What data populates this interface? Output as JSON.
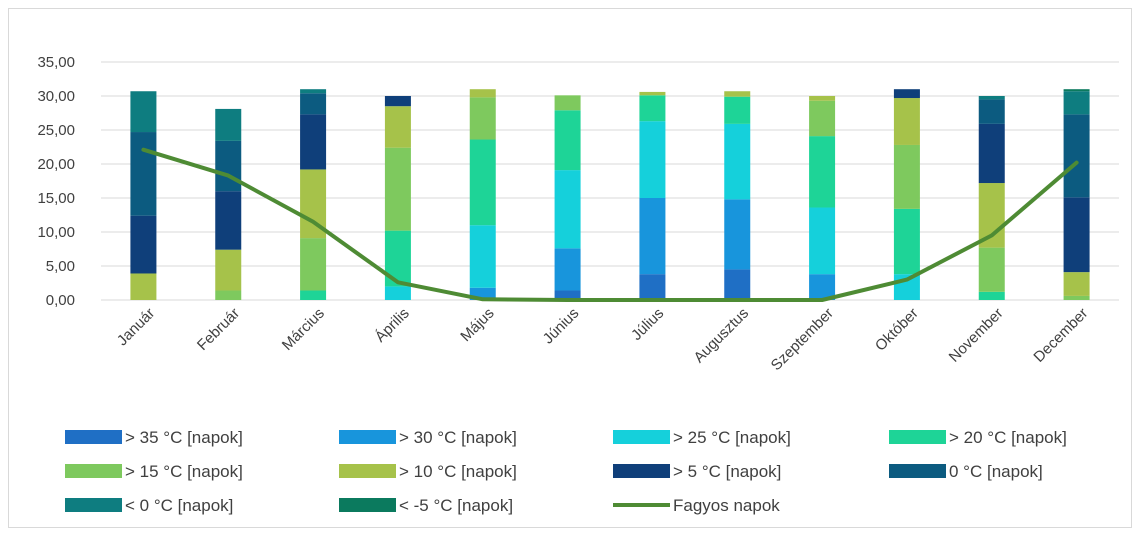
{
  "chart_data": {
    "type": "bar",
    "stacked": true,
    "title": "",
    "xlabel": "",
    "ylabel": "",
    "ylim": [
      0,
      35
    ],
    "y_ticks": [
      "0,00",
      "5,00",
      "10,00",
      "15,00",
      "20,00",
      "25,00",
      "30,00",
      "35,00"
    ],
    "grid": true,
    "legend_position": "bottom",
    "categories": [
      "Január",
      "Február",
      "Március",
      "Április",
      "Május",
      "Június",
      "Július",
      "Augusztus",
      "Szeptember",
      "Október",
      "November",
      "December"
    ],
    "series": [
      {
        "name": "> 35 °C [napok]",
        "color": "#1f6fc5",
        "values": [
          0,
          0,
          0,
          0,
          0,
          1.4,
          3.8,
          4.5,
          0,
          0,
          0,
          0
        ]
      },
      {
        "name": "> 30 °C [napok]",
        "color": "#1895dc",
        "values": [
          0,
          0,
          0,
          0,
          1.8,
          6.2,
          11.2,
          10.3,
          3.8,
          0,
          0,
          0
        ]
      },
      {
        "name": "> 25 °C [napok]",
        "color": "#15d0db",
        "values": [
          0,
          0,
          0,
          2.0,
          9.2,
          11.5,
          11.3,
          11.1,
          9.8,
          3.8,
          0,
          0
        ]
      },
      {
        "name": "> 20 °C [napok]",
        "color": "#1ed497",
        "values": [
          0,
          0,
          1.4,
          8.2,
          12.6,
          8.8,
          3.8,
          4.0,
          10.5,
          9.6,
          1.2,
          0
        ]
      },
      {
        "name": "> 15 °C [napok]",
        "color": "#7ec95e",
        "values": [
          0,
          1.4,
          7.7,
          12.2,
          6.2,
          2.2,
          0,
          0,
          5.2,
          9.4,
          6.5,
          0.6
        ]
      },
      {
        "name": "> 10 °C [napok]",
        "color": "#a6c24a",
        "values": [
          3.9,
          6.0,
          10.1,
          6.1,
          1.2,
          0,
          0.5,
          0.8,
          0.7,
          6.9,
          9.5,
          3.5
        ]
      },
      {
        "name": "> 5 °C [napok]",
        "color": "#0f3f7a",
        "values": [
          8.5,
          8.6,
          8.1,
          1.5,
          0,
          0,
          0,
          0,
          0,
          1.3,
          8.7,
          11.0
        ]
      },
      {
        "name": "0 °C [napok]",
        "color": "#0c5b80",
        "values": [
          12.3,
          7.4,
          3.1,
          0,
          0,
          0,
          0,
          0,
          0,
          0,
          3.6,
          12.2
        ]
      },
      {
        "name": "< 0 °C [napok]",
        "color": "#0e7d80",
        "values": [
          6.0,
          4.7,
          0.6,
          0,
          0,
          0,
          0,
          0,
          0,
          0,
          0.5,
          3.4
        ]
      },
      {
        "name": "< -5 °C [napok]",
        "color": "#0b7a5e",
        "values": [
          0,
          0,
          0,
          0,
          0,
          0,
          0,
          0,
          0,
          0,
          0,
          0.3
        ]
      }
    ],
    "line_series": {
      "name": "Fagyos napok",
      "color": "#4e8b34",
      "values": [
        22.1,
        18.3,
        11.5,
        2.6,
        0.1,
        0.0,
        0.0,
        0.0,
        0.0,
        3.0,
        9.5,
        20.2
      ]
    }
  }
}
